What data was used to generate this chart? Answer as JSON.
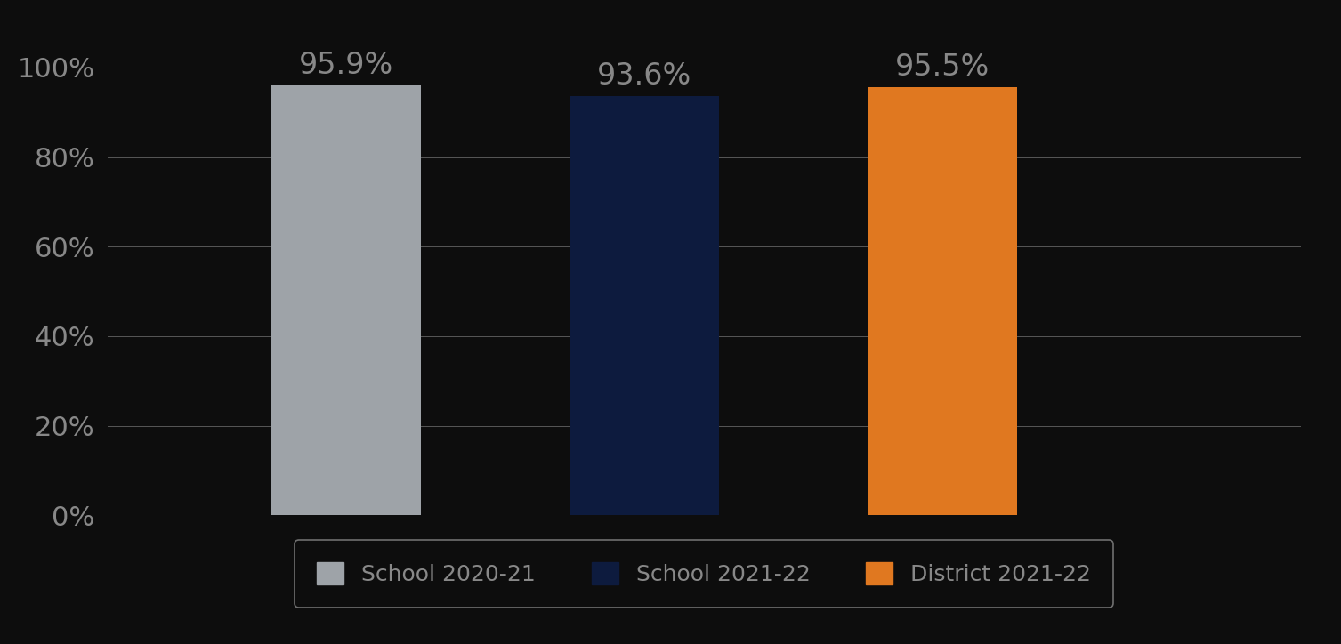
{
  "categories": [
    "School 2020-21",
    "School 2021-22",
    "District 2021-22"
  ],
  "values": [
    0.959,
    0.936,
    0.955
  ],
  "bar_colors": [
    "#9ea3a8",
    "#0d1b3e",
    "#e07820"
  ],
  "label_texts": [
    "95.9%",
    "93.6%",
    "95.5%"
  ],
  "ylim": [
    0,
    1.05
  ],
  "yticks": [
    0.0,
    0.2,
    0.4,
    0.6,
    0.8,
    1.0
  ],
  "ytick_labels": [
    "0%",
    "20%",
    "40%",
    "60%",
    "80%",
    "100%"
  ],
  "background_color": "#0d0d0d",
  "text_color": "#888888",
  "grid_color": "#888888",
  "label_fontsize": 24,
  "tick_fontsize": 22,
  "legend_fontsize": 18,
  "bar_width": 0.5,
  "x_positions": [
    1.0,
    2.0,
    3.0
  ],
  "xlim": [
    0.2,
    4.2
  ],
  "legend_edge_color": "#888888"
}
